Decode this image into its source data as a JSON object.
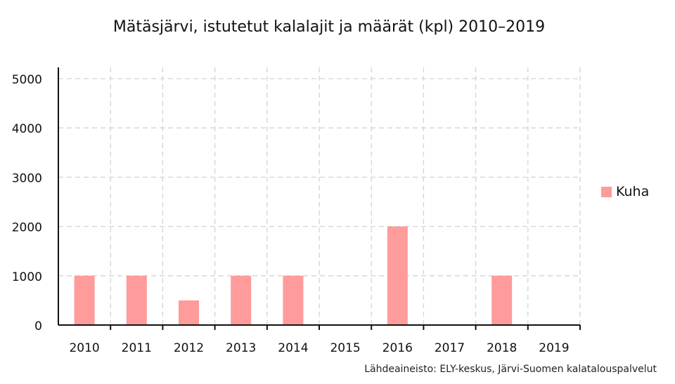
{
  "chart_data": {
    "type": "bar",
    "title": "Mätäsjärvi, istutetut kalalajit ja määrät (kpl) 2010–2019",
    "xlabel": "",
    "ylabel": "",
    "categories": [
      "2010",
      "2011",
      "2012",
      "2013",
      "2014",
      "2015",
      "2016",
      "2017",
      "2018",
      "2019"
    ],
    "series": [
      {
        "name": "Kuha",
        "values": [
          1000,
          1000,
          500,
          1000,
          1000,
          0,
          2000,
          0,
          1000,
          0
        ],
        "color": "#ff9b9b"
      }
    ],
    "ylim": [
      0,
      5000
    ],
    "yticks": [
      "0",
      "1000",
      "2000",
      "3000",
      "4000",
      "5000"
    ],
    "grid": true,
    "legend_position": "right",
    "source": "Lähdeaineisto: ELY-keskus, Järvi-Suomen kalatalouspalvelut"
  }
}
